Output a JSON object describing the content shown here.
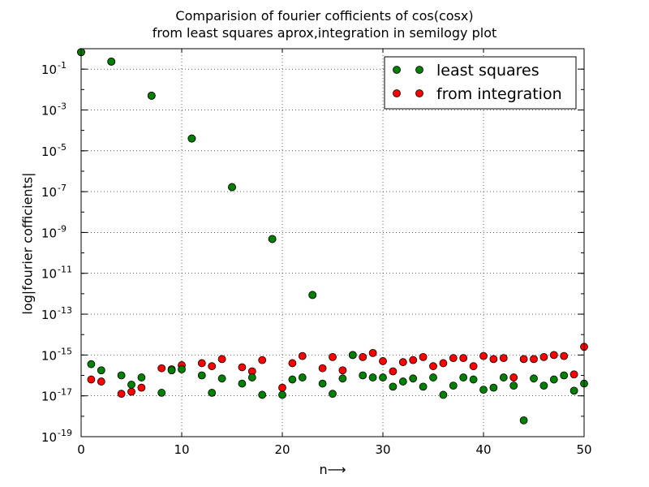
{
  "chart_data": {
    "type": "scatter",
    "title": [
      "Comparision of fourier cofficients of cos(cosx)",
      "from least squares aprox,integration in semilogy plot"
    ],
    "xlabel": "n⟶",
    "ylabel": "log|fourier cofficients|",
    "xlim": [
      0,
      50
    ],
    "ylim_exponent": [
      -19,
      0
    ],
    "yscale": "log",
    "grid": true,
    "legend_position": "top-right",
    "x_ticks": [
      "0",
      "10",
      "20",
      "30",
      "40",
      "50"
    ],
    "y_ticks": [
      {
        "base": "10",
        "exp": "-1",
        "value": -1
      },
      {
        "base": "10",
        "exp": "-3",
        "value": -3
      },
      {
        "base": "10",
        "exp": "-5",
        "value": -5
      },
      {
        "base": "10",
        "exp": "-7",
        "value": -7
      },
      {
        "base": "10",
        "exp": "-9",
        "value": -9
      },
      {
        "base": "10",
        "exp": "-11",
        "value": -11
      },
      {
        "base": "10",
        "exp": "-13",
        "value": -13
      },
      {
        "base": "10",
        "exp": "-15",
        "value": -15
      },
      {
        "base": "10",
        "exp": "-17",
        "value": -17
      },
      {
        "base": "10",
        "exp": "-19",
        "value": -19
      }
    ],
    "series": [
      {
        "name": "least squares",
        "color": "#008000",
        "x": [
          0,
          1,
          2,
          3,
          4,
          5,
          6,
          7,
          8,
          9,
          10,
          11,
          12,
          13,
          14,
          15,
          16,
          17,
          18,
          19,
          20,
          21,
          22,
          23,
          24,
          25,
          26,
          27,
          28,
          29,
          30,
          31,
          32,
          33,
          34,
          35,
          36,
          37,
          38,
          39,
          40,
          41,
          42,
          43,
          44,
          45,
          46,
          47,
          48,
          49,
          50
        ],
        "log10_y": [
          -0.17,
          -15.45,
          -15.75,
          -0.63,
          -16.0,
          -16.45,
          -16.1,
          -2.3,
          -16.85,
          -15.75,
          -15.7,
          -4.4,
          -16.0,
          -16.85,
          -16.15,
          -6.78,
          -16.4,
          -16.1,
          -16.95,
          -9.32,
          -16.95,
          -16.2,
          -16.1,
          -12.06,
          -16.4,
          -16.9,
          -16.15,
          -15.0,
          -16.0,
          -16.1,
          -16.1,
          -16.55,
          -16.3,
          -16.15,
          -16.55,
          -16.1,
          -16.95,
          -16.5,
          -16.1,
          -16.2,
          -16.7,
          -16.6,
          -16.1,
          -16.5,
          -18.2,
          -16.15,
          -16.5,
          -16.2,
          -16.0,
          -16.75,
          -16.4
        ]
      },
      {
        "name": "from integration",
        "color": "#ff0000",
        "x": [
          0,
          1,
          2,
          3,
          4,
          5,
          6,
          7,
          8,
          9,
          10,
          11,
          12,
          13,
          14,
          15,
          16,
          17,
          18,
          19,
          20,
          21,
          22,
          23,
          24,
          25,
          26,
          27,
          28,
          29,
          30,
          31,
          32,
          33,
          34,
          35,
          36,
          37,
          38,
          39,
          40,
          41,
          42,
          43,
          44,
          45,
          46,
          47,
          48,
          49,
          50
        ],
        "log10_y": [
          -0.17,
          -16.2,
          -16.3,
          -0.63,
          -16.9,
          -16.8,
          -16.6,
          -2.3,
          -15.65,
          -15.7,
          -15.5,
          -4.4,
          -15.4,
          -15.55,
          -15.2,
          -6.78,
          -15.6,
          -15.8,
          -15.25,
          -9.32,
          -16.6,
          -15.4,
          -15.05,
          -12.06,
          -15.65,
          -15.1,
          -15.75,
          -15.0,
          -15.1,
          -14.9,
          -15.3,
          -15.8,
          -15.35,
          -15.25,
          -15.1,
          -15.55,
          -15.4,
          -15.15,
          -15.15,
          -15.55,
          -15.05,
          -15.2,
          -15.15,
          -16.1,
          -15.2,
          -15.2,
          -15.1,
          -15.0,
          -15.05,
          -15.95,
          -14.6
        ]
      }
    ]
  }
}
